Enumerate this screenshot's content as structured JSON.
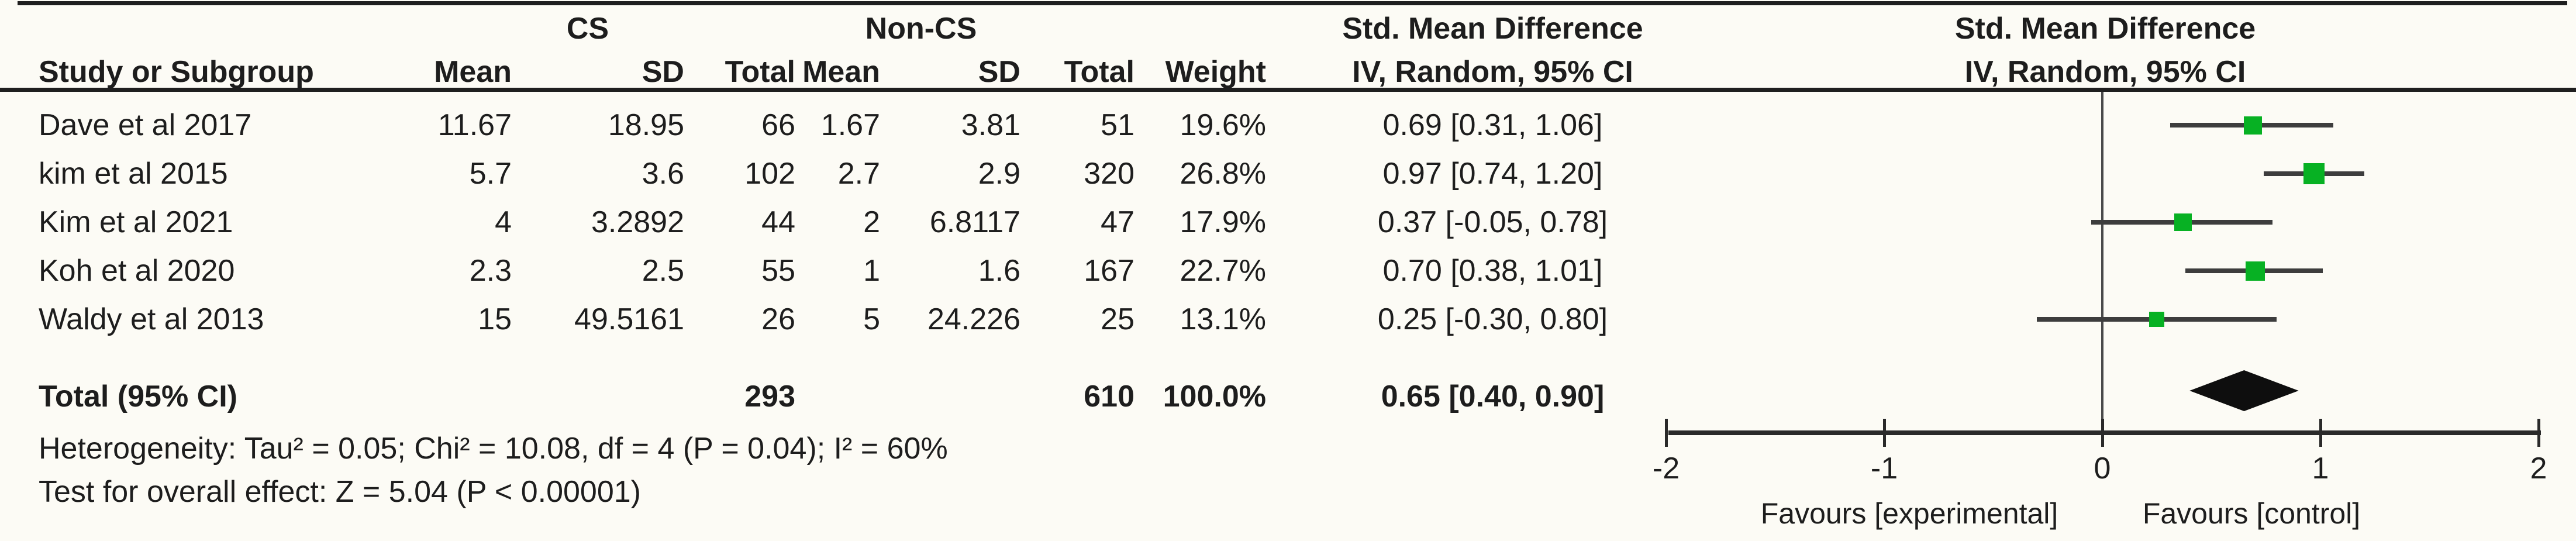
{
  "background": "#fcfbf5",
  "text_color": "#1d1d1d",
  "table": {
    "group_headers": {
      "cs": "CS",
      "non_cs": "Non-CS",
      "smd_left": "Std. Mean Difference",
      "smd_right": "Std. Mean Difference"
    },
    "col_headers": {
      "study": "Study or Subgroup",
      "cs_mean": "Mean",
      "cs_sd": "SD",
      "cs_total": "Total",
      "ncs_mean": "Mean",
      "ncs_sd": "SD",
      "ncs_total": "Total",
      "weight": "Weight",
      "ci_left": "IV, Random, 95% CI",
      "ci_right": "IV, Random, 95% CI"
    },
    "rows": [
      {
        "study": "Dave et al 2017",
        "cs_mean": "11.67",
        "cs_sd": "18.95",
        "cs_total": "66",
        "ncs_mean": "1.67",
        "ncs_sd": "3.81",
        "ncs_total": "51",
        "weight": "19.6%",
        "ci_text": "0.69 [0.31, 1.06]"
      },
      {
        "study": "kim et al 2015",
        "cs_mean": "5.7",
        "cs_sd": "3.6",
        "cs_total": "102",
        "ncs_mean": "2.7",
        "ncs_sd": "2.9",
        "ncs_total": "320",
        "weight": "26.8%",
        "ci_text": "0.97 [0.74, 1.20]"
      },
      {
        "study": "Kim et al 2021",
        "cs_mean": "4",
        "cs_sd": "3.2892",
        "cs_total": "44",
        "ncs_mean": "2",
        "ncs_sd": "6.8117",
        "ncs_total": "47",
        "weight": "17.9%",
        "ci_text": "0.37 [-0.05, 0.78]"
      },
      {
        "study": "Koh et al 2020",
        "cs_mean": "2.3",
        "cs_sd": "2.5",
        "cs_total": "55",
        "ncs_mean": "1",
        "ncs_sd": "1.6",
        "ncs_total": "167",
        "weight": "22.7%",
        "ci_text": "0.70 [0.38, 1.01]"
      },
      {
        "study": "Waldy et al 2013",
        "cs_mean": "15",
        "cs_sd": "49.5161",
        "cs_total": "26",
        "ncs_mean": "5",
        "ncs_sd": "24.226",
        "ncs_total": "25",
        "weight": "13.1%",
        "ci_text": "0.25 [-0.30, 0.80]"
      }
    ],
    "total_row": {
      "label": "Total (95% CI)",
      "cs_total": "293",
      "ncs_total": "610",
      "weight": "100.0%",
      "ci_text": "0.65 [0.40, 0.90]"
    },
    "footnotes": {
      "heterogeneity": "Heterogeneity: Tau² = 0.05; Chi² = 10.08, df = 4 (P = 0.04); I² = 60%",
      "overall_effect": "Test for overall effect: Z = 5.04 (P < 0.00001)"
    }
  },
  "chart_data": {
    "type": "forest",
    "effect_measure": "Std. Mean Difference",
    "method": "IV, Random, 95% CI",
    "x_min": -2,
    "x_max": 2,
    "ticks": [
      -2,
      -1,
      0,
      1,
      2
    ],
    "tick_labels": [
      "-2",
      "-1",
      "0",
      "1",
      "2"
    ],
    "axis_label_left": "Favours [experimental]",
    "axis_label_right": "Favours [control]",
    "grid": false,
    "studies": [
      {
        "name": "Dave et al 2017",
        "smd": 0.69,
        "ci_low": 0.31,
        "ci_high": 1.06,
        "weight_pct": 19.6
      },
      {
        "name": "kim et al 2015",
        "smd": 0.97,
        "ci_low": 0.74,
        "ci_high": 1.2,
        "weight_pct": 26.8
      },
      {
        "name": "Kim et al 2021",
        "smd": 0.37,
        "ci_low": -0.05,
        "ci_high": 0.78,
        "weight_pct": 17.9
      },
      {
        "name": "Koh et al 2020",
        "smd": 0.7,
        "ci_low": 0.38,
        "ci_high": 1.01,
        "weight_pct": 22.7
      },
      {
        "name": "Waldy et al 2013",
        "smd": 0.25,
        "ci_low": -0.3,
        "ci_high": 0.8,
        "weight_pct": 13.1
      }
    ],
    "total": {
      "label": "Total (95% CI)",
      "smd": 0.65,
      "ci_low": 0.4,
      "ci_high": 0.9,
      "weight_pct": 100.0
    },
    "marker_color": "#07b123",
    "ci_line_color": "#3d3d3d",
    "diamond_color": "#0e0e0e",
    "axis_color": "#2a2a2a"
  }
}
